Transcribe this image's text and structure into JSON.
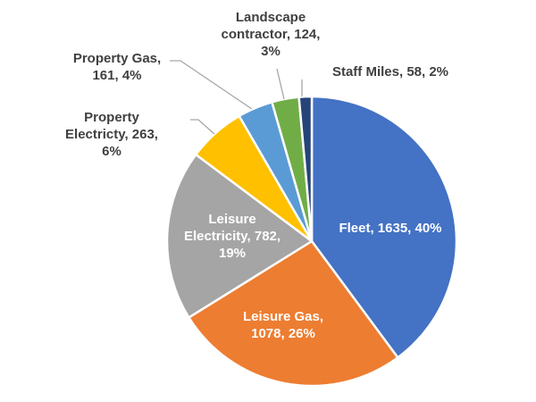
{
  "chart_data": {
    "type": "pie",
    "title": "",
    "start_angle_deg": 0,
    "direction": "clockwise",
    "slices": [
      {
        "label": "Fleet",
        "value": 1635,
        "percent": "40%",
        "color": "#4472C4",
        "text": "Fleet, 1635, 40%"
      },
      {
        "label": "Leisure Gas",
        "value": 1078,
        "percent": "26%",
        "color": "#ED7D31",
        "text": "Leisure Gas, 1078, 26%"
      },
      {
        "label": "Leisure Electricity",
        "value": 782,
        "percent": "19%",
        "color": "#A5A5A5",
        "text": "Leisure Electricity, 782, 19%"
      },
      {
        "label": "Property Electricty",
        "value": 263,
        "percent": "6%",
        "color": "#FFC000",
        "text": "Property Electricty, 263, 6%"
      },
      {
        "label": "Property Gas",
        "value": 161,
        "percent": "4%",
        "color": "#5B9BD5",
        "text": "Property Gas, 161, 4%"
      },
      {
        "label": "Landscape contractor",
        "value": 124,
        "percent": "3%",
        "color": "#70AD47",
        "text": "Landscape contractor, 124, 3%"
      },
      {
        "label": "Staff Miles",
        "value": 58,
        "percent": "2%",
        "color": "#264478",
        "text": "Staff Miles, 58, 2%"
      }
    ],
    "legend": "none",
    "data_labels": "category, value, percentage"
  },
  "labels": {
    "fleet": [
      "Fleet, 1635, 40%"
    ],
    "leisure_gas": [
      "Leisure Gas,",
      "1078, 26%"
    ],
    "leisure_electricity": [
      "Leisure",
      "Electricity, 782,",
      "19%"
    ],
    "property_electricty": [
      "Property",
      "Electricty, 263,",
      "6%"
    ],
    "property_gas": [
      "Property Gas,",
      "161, 4%"
    ],
    "landscape": [
      "Landscape",
      "contractor, 124,",
      "3%"
    ],
    "staff_miles": [
      "Staff Miles, 58, 2%"
    ]
  }
}
